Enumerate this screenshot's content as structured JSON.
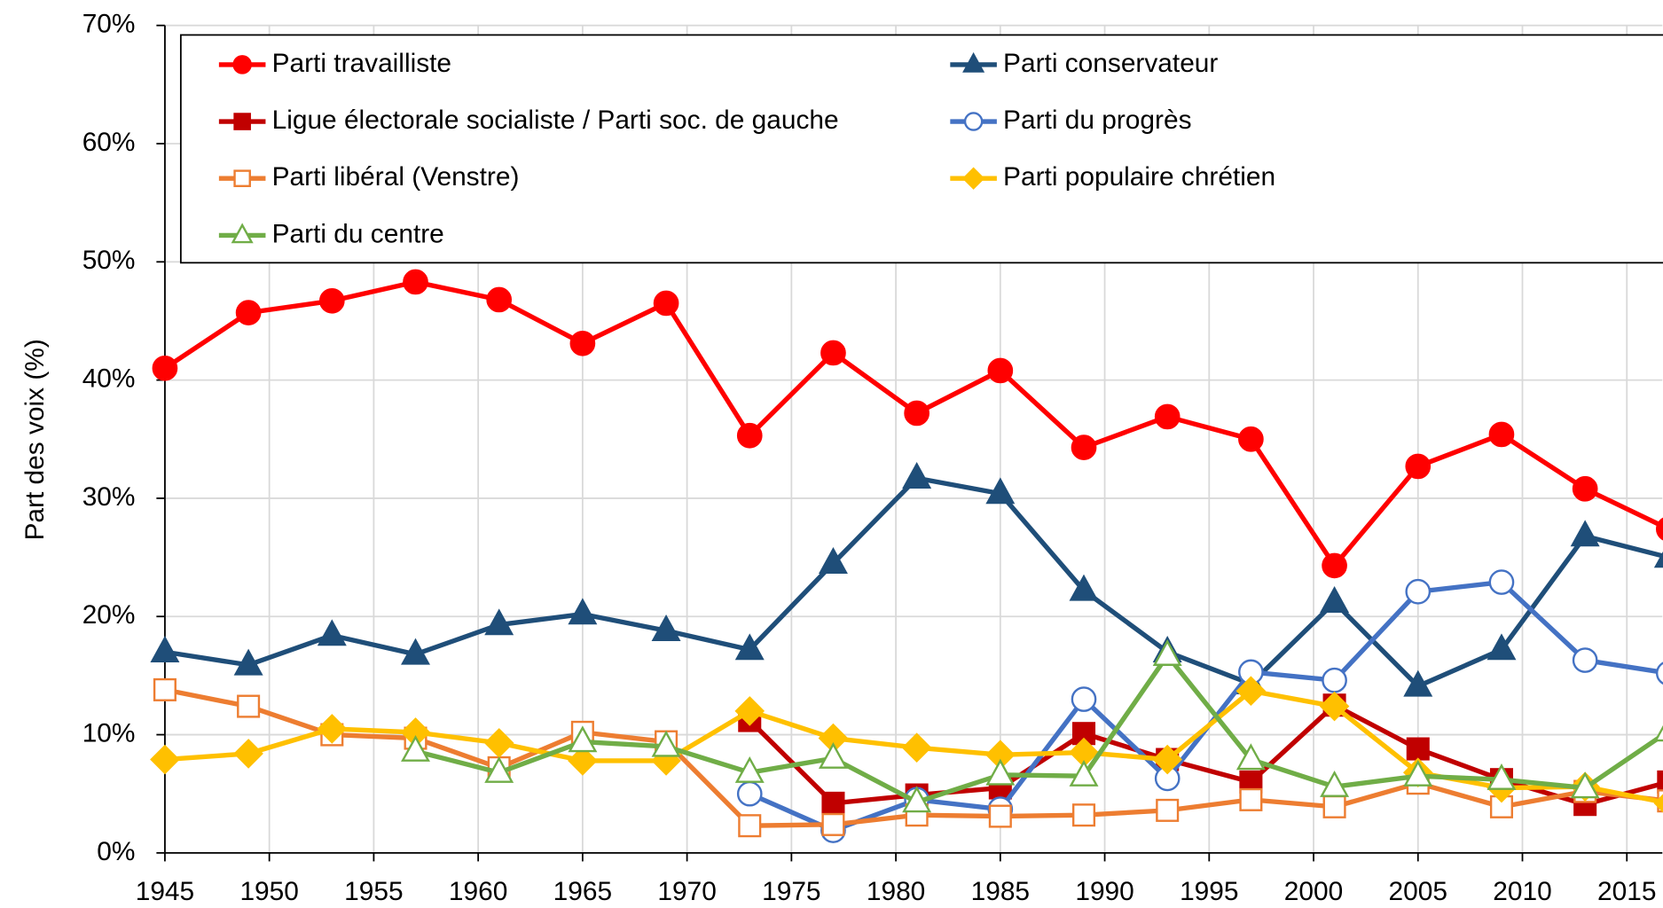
{
  "chart_data": {
    "type": "line",
    "y_label": "Part des voix (%)",
    "x": [
      1945,
      1949,
      1953,
      1957,
      1961,
      1965,
      1969,
      1973,
      1977,
      1981,
      1985,
      1989,
      1993,
      1997,
      2001,
      2005,
      2009,
      2013,
      2017
    ],
    "xlim": [
      1945,
      2016.7
    ],
    "xticks": [
      1945,
      1950,
      1955,
      1960,
      1965,
      1970,
      1975,
      1980,
      1985,
      1990,
      1995,
      2000,
      2005,
      2010,
      2015
    ],
    "ylim": [
      0,
      70
    ],
    "yticks": [
      {
        "value": 0,
        "label": "0%"
      },
      {
        "value": 10,
        "label": "10%"
      },
      {
        "value": 20,
        "label": "20%"
      },
      {
        "value": 30,
        "label": "30%"
      },
      {
        "value": 40,
        "label": "40%"
      },
      {
        "value": 50,
        "label": "50%"
      },
      {
        "value": 60,
        "label": "60%"
      },
      {
        "value": 70,
        "label": "70%"
      }
    ],
    "grid": true,
    "legend": "top",
    "series": [
      {
        "name": "Parti travailliste",
        "color": "#ff0000",
        "marker": "circle",
        "hollow": false,
        "values": [
          41.0,
          45.7,
          46.7,
          48.3,
          46.8,
          43.1,
          46.5,
          35.3,
          42.3,
          37.2,
          40.8,
          34.3,
          36.9,
          35.0,
          24.3,
          32.7,
          35.4,
          30.8,
          27.4
        ]
      },
      {
        "name": "Parti conservateur",
        "color": "#1f4e79",
        "marker": "triangle",
        "hollow": false,
        "values": [
          17.0,
          15.9,
          18.4,
          16.8,
          19.3,
          20.2,
          18.8,
          17.2,
          24.5,
          31.7,
          30.4,
          22.2,
          17.0,
          14.3,
          21.2,
          14.1,
          17.2,
          26.8,
          25.0
        ]
      },
      {
        "name": "Ligue électorale socialiste / Parti soc. de gauche",
        "color": "#c00000",
        "marker": "square",
        "hollow": false,
        "values": [
          null,
          null,
          null,
          null,
          null,
          null,
          null,
          11.2,
          4.2,
          4.9,
          5.5,
          10.1,
          7.9,
          6.0,
          12.5,
          8.8,
          6.2,
          4.1,
          6.0
        ]
      },
      {
        "name": "Parti du progrès",
        "color": "#4472c4",
        "marker": "circle",
        "hollow": true,
        "values": [
          null,
          null,
          null,
          null,
          null,
          null,
          null,
          5.0,
          1.9,
          4.5,
          3.7,
          13.0,
          6.3,
          15.3,
          14.6,
          22.1,
          22.9,
          16.3,
          15.2
        ]
      },
      {
        "name": "Parti libéral (Venstre)",
        "color": "#ed7d31",
        "marker": "square",
        "hollow": true,
        "values": [
          13.8,
          12.4,
          10.0,
          9.7,
          7.2,
          10.2,
          9.4,
          2.3,
          2.4,
          3.2,
          3.1,
          3.2,
          3.6,
          4.5,
          3.9,
          5.9,
          3.9,
          5.2,
          4.4
        ]
      },
      {
        "name": "Parti populaire chrétien",
        "color": "#ffc000",
        "marker": "diamond",
        "hollow": false,
        "values": [
          7.9,
          8.4,
          10.5,
          10.2,
          9.3,
          7.8,
          7.8,
          12.0,
          9.7,
          8.9,
          8.3,
          8.5,
          7.9,
          13.7,
          12.4,
          6.8,
          5.5,
          5.6,
          4.2
        ]
      },
      {
        "name": "Parti du centre",
        "color": "#70ad47",
        "marker": "triangle",
        "hollow": true,
        "values": [
          null,
          null,
          null,
          8.6,
          6.8,
          9.4,
          9.0,
          6.8,
          8.0,
          4.3,
          6.6,
          6.5,
          16.7,
          7.9,
          5.6,
          6.5,
          6.2,
          5.5,
          10.3
        ]
      }
    ]
  }
}
